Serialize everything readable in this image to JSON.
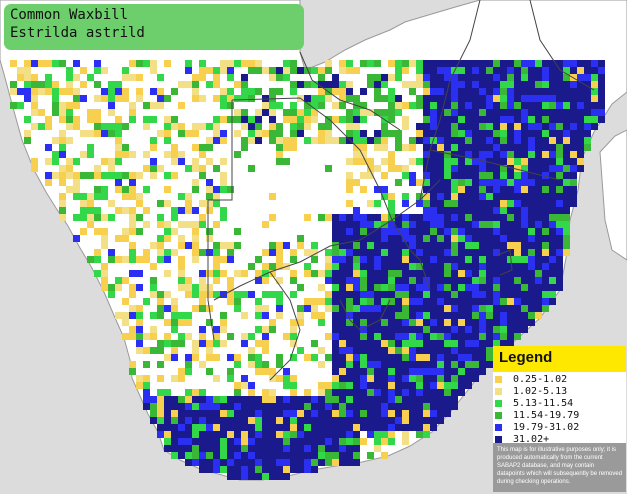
{
  "title": {
    "common_name": "Common Waxbill",
    "scientific_name": "Estrilda astrild"
  },
  "legend": {
    "heading": "Legend",
    "classes": [
      {
        "label": "0.25-1.02",
        "color": "#f6d04e"
      },
      {
        "label": "1.02-5.13",
        "color": "#f2df86"
      },
      {
        "label": "5.13-11.54",
        "color": "#33d84a"
      },
      {
        "label": "11.54-19.79",
        "color": "#3ab737"
      },
      {
        "label": "19.79-31.02",
        "color": "#2b2ff2"
      },
      {
        "label": "31.02+",
        "color": "#1a1a8c"
      }
    ],
    "disclaimer": "This map is for illustrative purposes only; it is produced automatically from the current SABAP2 database, and may contain datapoints which will subsequently be removed during checking operations."
  },
  "map": {
    "land_color": "#ffffff",
    "sea_color": "#dcdcdc",
    "border_color": "#444444"
  }
}
